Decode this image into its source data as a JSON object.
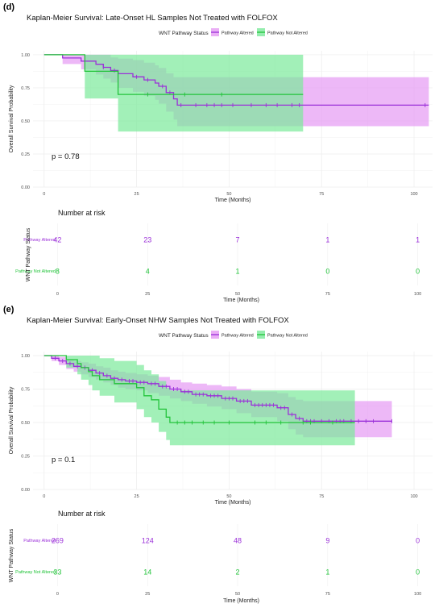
{
  "panels": [
    {
      "panel_label": "(d)",
      "title": "Kaplan-Meier Survival: Late-Onset HL Samples Not Treated with FOLFOX",
      "legend_title": "WNT Pathway Status",
      "pvalue": "p = 0.78",
      "risk_title": "Number at risk",
      "risk_ylabel": "WNT Pathway Status",
      "risk_xlabel": "Time (Months)",
      "risk_xticks": [
        "0",
        "25",
        "50",
        "75",
        "100"
      ],
      "risk_counts": [
        {
          "label": "Pathway Altered",
          "values": [
            "42",
            "23",
            "7",
            "1",
            "1"
          ]
        },
        {
          "label": "Pathway Not Altered",
          "values": [
            "8",
            "4",
            "1",
            "0",
            "0"
          ]
        }
      ]
    },
    {
      "panel_label": "(e)",
      "title": "Kaplan-Meier Survival: Early-Onset NHW Samples Not Treated with FOLFOX",
      "legend_title": "WNT Pathway Status",
      "pvalue": "p = 0.1",
      "risk_title": "Number at risk",
      "risk_ylabel": "WNT Pathway Status",
      "risk_xlabel": "Time (Months)",
      "risk_xticks": [
        "0",
        "25",
        "50",
        "75",
        "100"
      ],
      "risk_counts": [
        {
          "label": "Pathway Altered",
          "values": [
            "269",
            "124",
            "48",
            "9",
            "0"
          ]
        },
        {
          "label": "Pathway Not Altered",
          "values": [
            "33",
            "14",
            "2",
            "1",
            "0"
          ]
        }
      ]
    }
  ],
  "colors": {
    "altered": "#9b30d9",
    "altered_band": "#e59af3",
    "not_altered": "#22c33a",
    "not_altered_band": "#7be99a",
    "grid": "#ececec",
    "axis_text": "#4d4d4d"
  },
  "chart_data": [
    {
      "type": "line",
      "subtype": "kaplan-meier",
      "title": "Kaplan-Meier Survival: Late-Onset HL Samples Not Treated with FOLFOX",
      "xlabel": "Time (Months)",
      "ylabel": "Overall Survival Probability",
      "xlim": [
        -3,
        105
      ],
      "ylim": [
        0,
        1.03
      ],
      "xticks": [
        0,
        25,
        50,
        75,
        100
      ],
      "yticks": [
        0,
        0.25,
        0.5,
        0.75,
        1.0
      ],
      "ytick_labels": [
        "0.00",
        "0.25",
        "0.50",
        "0.75",
        "1.00"
      ],
      "grid": true,
      "legend_position": "top",
      "series": [
        {
          "name": "Pathway Altered",
          "color_key": "altered",
          "steps": [
            [
              0,
              1.0
            ],
            [
              5,
              0.976
            ],
            [
              10,
              0.952
            ],
            [
              14,
              0.928
            ],
            [
              16,
              0.905
            ],
            [
              18,
              0.881
            ],
            [
              20,
              0.857
            ],
            [
              24,
              0.833
            ],
            [
              27,
              0.81
            ],
            [
              30,
              0.786
            ],
            [
              31,
              0.762
            ],
            [
              33,
              0.714
            ],
            [
              35,
              0.667
            ],
            [
              36,
              0.619
            ],
            [
              104,
              0.619
            ]
          ],
          "ci_upper": [
            [
              0,
              1.0
            ],
            [
              5,
              1.0
            ],
            [
              10,
              1.0
            ],
            [
              14,
              1.0
            ],
            [
              16,
              1.0
            ],
            [
              18,
              0.98
            ],
            [
              20,
              0.97
            ],
            [
              24,
              0.96
            ],
            [
              27,
              0.94
            ],
            [
              30,
              0.92
            ],
            [
              31,
              0.9
            ],
            [
              33,
              0.86
            ],
            [
              35,
              0.83
            ],
            [
              36,
              0.83
            ],
            [
              104,
              0.83
            ]
          ],
          "ci_lower": [
            [
              0,
              1.0
            ],
            [
              5,
              0.93
            ],
            [
              10,
              0.89
            ],
            [
              14,
              0.85
            ],
            [
              16,
              0.82
            ],
            [
              18,
              0.79
            ],
            [
              20,
              0.75
            ],
            [
              24,
              0.72
            ],
            [
              27,
              0.69
            ],
            [
              30,
              0.66
            ],
            [
              31,
              0.63
            ],
            [
              33,
              0.57
            ],
            [
              35,
              0.51
            ],
            [
              36,
              0.46
            ],
            [
              104,
              0.46
            ]
          ],
          "censor_x": [
            16,
            19,
            25,
            28,
            32,
            34,
            37,
            41,
            44,
            46,
            48,
            51,
            56,
            60,
            63,
            67,
            69,
            103
          ]
        },
        {
          "name": "Pathway Not Altered",
          "color_key": "not_altered",
          "steps": [
            [
              0,
              1.0
            ],
            [
              11,
              0.875
            ],
            [
              20,
              0.7
            ],
            [
              70,
              0.7
            ]
          ],
          "ci_upper": [
            [
              0,
              1.0
            ],
            [
              11,
              1.0
            ],
            [
              20,
              1.0
            ],
            [
              70,
              1.0
            ]
          ],
          "ci_lower": [
            [
              0,
              1.0
            ],
            [
              11,
              0.67
            ],
            [
              20,
              0.42
            ],
            [
              70,
              0.42
            ]
          ],
          "censor_x": [
            28,
            38,
            48
          ]
        }
      ]
    },
    {
      "type": "line",
      "subtype": "kaplan-meier",
      "title": "Kaplan-Meier Survival: Early-Onset NHW Samples Not Treated with FOLFOX",
      "xlabel": "Time (Months)",
      "ylabel": "Overall Survival Probability",
      "xlim": [
        -3,
        105
      ],
      "ylim": [
        0,
        1.03
      ],
      "xticks": [
        0,
        25,
        50,
        75,
        100
      ],
      "yticks": [
        0,
        0.25,
        0.5,
        0.75,
        1.0
      ],
      "ytick_labels": [
        "0.00",
        "0.25",
        "0.50",
        "0.75",
        "1.00"
      ],
      "grid": true,
      "legend_position": "top",
      "series": [
        {
          "name": "Pathway Altered",
          "color_key": "altered",
          "steps": [
            [
              0,
              1.0
            ],
            [
              2,
              0.98
            ],
            [
              4,
              0.96
            ],
            [
              6,
              0.94
            ],
            [
              8,
              0.92
            ],
            [
              10,
              0.91
            ],
            [
              12,
              0.89
            ],
            [
              14,
              0.87
            ],
            [
              16,
              0.85
            ],
            [
              18,
              0.83
            ],
            [
              20,
              0.82
            ],
            [
              22,
              0.81
            ],
            [
              25,
              0.8
            ],
            [
              28,
              0.79
            ],
            [
              31,
              0.77
            ],
            [
              34,
              0.75
            ],
            [
              37,
              0.73
            ],
            [
              40,
              0.71
            ],
            [
              44,
              0.7
            ],
            [
              48,
              0.68
            ],
            [
              52,
              0.66
            ],
            [
              56,
              0.63
            ],
            [
              63,
              0.61
            ],
            [
              66,
              0.56
            ],
            [
              68,
              0.53
            ],
            [
              70,
              0.51
            ],
            [
              94,
              0.51
            ]
          ],
          "ci_upper": [
            [
              0,
              1.0
            ],
            [
              2,
              1.0
            ],
            [
              4,
              0.99
            ],
            [
              6,
              0.97
            ],
            [
              8,
              0.96
            ],
            [
              10,
              0.95
            ],
            [
              12,
              0.94
            ],
            [
              14,
              0.92
            ],
            [
              16,
              0.91
            ],
            [
              18,
              0.89
            ],
            [
              20,
              0.88
            ],
            [
              22,
              0.87
            ],
            [
              25,
              0.86
            ],
            [
              28,
              0.85
            ],
            [
              31,
              0.84
            ],
            [
              34,
              0.82
            ],
            [
              37,
              0.8
            ],
            [
              40,
              0.79
            ],
            [
              44,
              0.78
            ],
            [
              48,
              0.77
            ],
            [
              52,
              0.75
            ],
            [
              56,
              0.73
            ],
            [
              63,
              0.72
            ],
            [
              66,
              0.69
            ],
            [
              68,
              0.67
            ],
            [
              70,
              0.66
            ],
            [
              94,
              0.66
            ]
          ],
          "ci_lower": [
            [
              0,
              1.0
            ],
            [
              2,
              0.96
            ],
            [
              4,
              0.93
            ],
            [
              6,
              0.9
            ],
            [
              8,
              0.88
            ],
            [
              10,
              0.86
            ],
            [
              12,
              0.84
            ],
            [
              14,
              0.82
            ],
            [
              16,
              0.8
            ],
            [
              18,
              0.78
            ],
            [
              20,
              0.76
            ],
            [
              22,
              0.75
            ],
            [
              25,
              0.74
            ],
            [
              28,
              0.72
            ],
            [
              31,
              0.7
            ],
            [
              34,
              0.68
            ],
            [
              37,
              0.66
            ],
            [
              40,
              0.64
            ],
            [
              44,
              0.62
            ],
            [
              48,
              0.6
            ],
            [
              52,
              0.57
            ],
            [
              56,
              0.54
            ],
            [
              63,
              0.51
            ],
            [
              66,
              0.45
            ],
            [
              68,
              0.41
            ],
            [
              70,
              0.39
            ],
            [
              94,
              0.39
            ]
          ],
          "censor_x": [
            3,
            5,
            7,
            9,
            11,
            13,
            15,
            17,
            19,
            21,
            23,
            24,
            26,
            27,
            29,
            30,
            32,
            33,
            35,
            36,
            38,
            39,
            41,
            42,
            43,
            45,
            46,
            47,
            49,
            50,
            51,
            53,
            54,
            55,
            57,
            58,
            59,
            60,
            61,
            62,
            64,
            65,
            67,
            69,
            71,
            72,
            73,
            75,
            77,
            79,
            80,
            81,
            83,
            85,
            87,
            89,
            94
          ]
        },
        {
          "name": "Pathway Not Altered",
          "color_key": "not_altered",
          "steps": [
            [
              0,
              1.0
            ],
            [
              6,
              0.97
            ],
            [
              9,
              0.94
            ],
            [
              10,
              0.91
            ],
            [
              12,
              0.88
            ],
            [
              13,
              0.85
            ],
            [
              15,
              0.82
            ],
            [
              19,
              0.79
            ],
            [
              25,
              0.76
            ],
            [
              27,
              0.7
            ],
            [
              29,
              0.67
            ],
            [
              31,
              0.6
            ],
            [
              33,
              0.54
            ],
            [
              34,
              0.5
            ],
            [
              84,
              0.5
            ]
          ],
          "ci_upper": [
            [
              0,
              1.0
            ],
            [
              6,
              1.0
            ],
            [
              9,
              1.0
            ],
            [
              10,
              1.0
            ],
            [
              12,
              1.0
            ],
            [
              13,
              1.0
            ],
            [
              15,
              0.98
            ],
            [
              19,
              0.96
            ],
            [
              25,
              0.93
            ],
            [
              27,
              0.89
            ],
            [
              29,
              0.86
            ],
            [
              31,
              0.81
            ],
            [
              33,
              0.76
            ],
            [
              34,
              0.74
            ],
            [
              84,
              0.74
            ]
          ],
          "ci_lower": [
            [
              0,
              1.0
            ],
            [
              6,
              0.91
            ],
            [
              9,
              0.86
            ],
            [
              10,
              0.82
            ],
            [
              12,
              0.78
            ],
            [
              13,
              0.74
            ],
            [
              15,
              0.7
            ],
            [
              19,
              0.65
            ],
            [
              25,
              0.6
            ],
            [
              27,
              0.54
            ],
            [
              29,
              0.5
            ],
            [
              31,
              0.43
            ],
            [
              33,
              0.37
            ],
            [
              34,
              0.33
            ],
            [
              84,
              0.33
            ]
          ],
          "censor_x": [
            36,
            38,
            40,
            43,
            46,
            50,
            57,
            60,
            64,
            70,
            72,
            78
          ]
        }
      ]
    }
  ]
}
